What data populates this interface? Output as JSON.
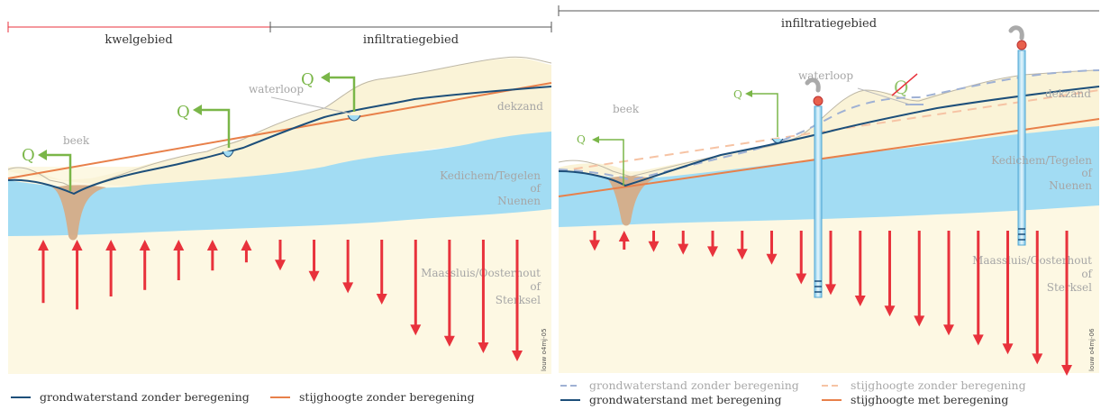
{
  "colors": {
    "dekzand": "#faf3d7",
    "dekzand_top": "#f6ecc4",
    "aquifer": "#a2dcf3",
    "deep": "#fdf8e3",
    "gw": "#1d4f7a",
    "gw_dash": "#9fb1d4",
    "stijg": "#e8804a",
    "stijg_dash": "#f6c3a4",
    "q": "#7ab648",
    "arrow": "#e8323c",
    "beek": "#d6ac87",
    "zone_red": "#e8323c",
    "zone_gray": "#555555"
  },
  "left": {
    "zones": {
      "kwel": "kwelgebied",
      "infiltratie": "infiltratiegebied"
    },
    "labels": {
      "beek": "beek",
      "waterloop": "waterloop",
      "dekzand": "dekzand",
      "layer_mid": [
        "Kedichem/Tegelen",
        "of",
        "Nuenen"
      ],
      "layer_deep": [
        "Maassluis/Oosterhout",
        "of",
        "Sterksel"
      ]
    },
    "q_label": "Q",
    "credit": "louw o4mj-05",
    "flux_arrows": [
      -0.78,
      -0.86,
      -0.7,
      -0.62,
      -0.5,
      -0.38,
      -0.28,
      0.38,
      0.52,
      0.66,
      0.8,
      1.18,
      1.32,
      1.4,
      1.5
    ]
  },
  "right": {
    "zone": "infiltratiegebied",
    "labels": {
      "beek": "beek",
      "waterloop": "waterloop",
      "dekzand": "dekzand",
      "layer_mid": [
        "Kedichem/Tegelen",
        "of",
        "Nuenen"
      ],
      "layer_deep": [
        "Maassluis/Oosterhout",
        "of",
        "Sterksel"
      ]
    },
    "q_label": "Q",
    "credit": "louw o4mj-06",
    "flux_arrows": [
      0.32,
      -0.3,
      0.34,
      0.38,
      0.42,
      0.46,
      0.54,
      0.85,
      1.02,
      1.2,
      1.36,
      1.52,
      1.66,
      1.82,
      1.96,
      2.12,
      2.3
    ]
  },
  "legend": {
    "gw_zonder": "grondwaterstand zonder beregening",
    "stijg_zonder": "stijghoogte zonder beregening",
    "gw_met": "grondwaterstand met beregening",
    "stijg_met": "stijghoogte met beregening"
  }
}
